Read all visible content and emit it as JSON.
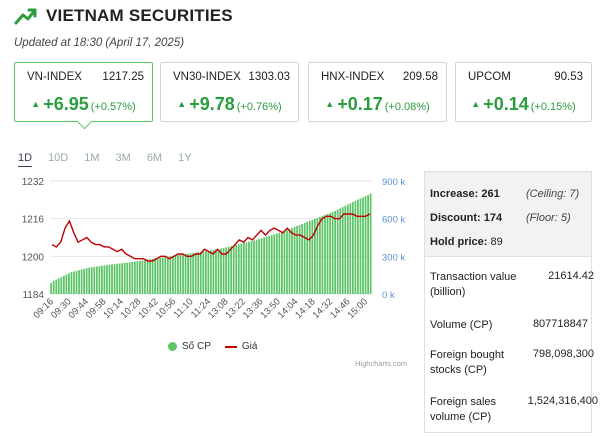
{
  "header": {
    "title": "VIETNAM SECURITIES",
    "icon": "trending-up-icon",
    "accent": "#2a9d3e"
  },
  "updated": "Updated at 18:30 (April 17, 2025)",
  "indices": [
    {
      "name": "VN-INDEX",
      "price": "1217.25",
      "change": "+6.95",
      "pct": "(+0.57%)"
    },
    {
      "name": "VN30-INDEX",
      "price": "1303.03",
      "change": "+9.78",
      "pct": "(+0.76%)"
    },
    {
      "name": "HNX-INDEX",
      "price": "209.58",
      "change": "+0.17",
      "pct": "(+0.08%)"
    },
    {
      "name": "UPCOM",
      "price": "90.53",
      "change": "+0.14",
      "pct": "(+0.15%)"
    }
  ],
  "ranges": [
    "1D",
    "10D",
    "1M",
    "3M",
    "6M",
    "1Y"
  ],
  "selected_range": "1D",
  "legend": {
    "volume": "Số CP",
    "price": "Giá"
  },
  "credits": "Highcharts.com",
  "stats": {
    "increase_label": "Increase: 261",
    "ceiling": "(Ceiling: 7)",
    "discount_label": "Discount: 174",
    "floor": "(Floor: 5)",
    "hold_label": "Hold price:",
    "hold_value": "89",
    "rows": [
      {
        "label": "Transaction value (billion)",
        "value": "21614.42"
      },
      {
        "label": "Volume (CP)",
        "value": "807718847"
      },
      {
        "label": "Foreign bought stocks (CP)",
        "value": "798,098,300"
      },
      {
        "label": "Foreign sales volume (CP)",
        "value": "1,524,316,400"
      }
    ]
  },
  "chart_data": {
    "type": "bar",
    "x_ticks": [
      "09:16",
      "09:30",
      "09:44",
      "09:58",
      "10:14",
      "10:28",
      "10:42",
      "10:56",
      "11:10",
      "11:24",
      "13:08",
      "13:22",
      "13:36",
      "13:50",
      "14:04",
      "14:18",
      "14:32",
      "14:46",
      "15:00"
    ],
    "y_left_ticks": [
      "1184",
      "1200",
      "1216",
      "1232"
    ],
    "y_right_ticks": [
      "0 k",
      "300 k",
      "600 k",
      "900 k"
    ],
    "y_left_range": [
      1184,
      1232
    ],
    "y_right_range": [
      0,
      900
    ],
    "series": [
      {
        "name": "Số CP",
        "color": "#5bc466",
        "values": [
          90,
          105,
          115,
          125,
          135,
          145,
          155,
          165,
          175,
          180,
          185,
          190,
          195,
          200,
          205,
          210,
          213,
          216,
          219,
          222,
          225,
          228,
          231,
          234,
          236,
          238,
          241,
          243,
          245,
          248,
          250,
          252,
          255,
          258,
          261,
          264,
          267,
          270,
          273,
          276,
          279,
          282,
          285,
          288,
          291,
          294,
          297,
          300,
          303,
          306,
          309,
          312,
          315,
          318,
          321,
          324,
          327,
          330,
          333,
          336,
          339,
          342,
          345,
          348,
          351,
          355,
          359,
          363,
          367,
          371,
          376,
          381,
          386,
          391,
          396,
          401,
          406,
          411,
          416,
          421,
          426,
          432,
          438,
          444,
          450,
          456,
          462,
          468,
          475,
          482,
          489,
          496,
          503,
          510,
          518,
          526,
          534,
          542,
          550,
          558,
          566,
          574,
          582,
          590,
          598,
          606,
          614,
          622,
          630,
          638,
          646,
          654,
          662,
          672,
          682,
          692,
          702,
          712,
          722,
          732,
          742,
          752,
          760,
          770,
          780,
          790,
          800
        ]
      },
      {
        "name": "Giá",
        "color": "#c00000",
        "values": [
          1205,
          1204,
          1206,
          1212,
          1215,
          1210,
          1206,
          1207,
          1208,
          1206,
          1205,
          1205,
          1204,
          1204,
          1203,
          1202,
          1203,
          1201,
          1200,
          1199,
          1199,
          1199,
          1198,
          1198,
          1199,
          1200,
          1200,
          1199,
          1200,
          1201,
          1201,
          1200,
          1200,
          1201,
          1201,
          1203,
          1202,
          1201,
          1203,
          1201,
          1201,
          1203,
          1205,
          1207,
          1206,
          1208,
          1207,
          1209,
          1211,
          1209,
          1211,
          1212,
          1211,
          1210,
          1212,
          1210,
          1209,
          1209,
          1208,
          1207,
          1209,
          1213,
          1216,
          1217,
          1217,
          1216,
          1216,
          1218,
          1218,
          1218,
          1217,
          1217,
          1217,
          1218
        ]
      }
    ]
  }
}
